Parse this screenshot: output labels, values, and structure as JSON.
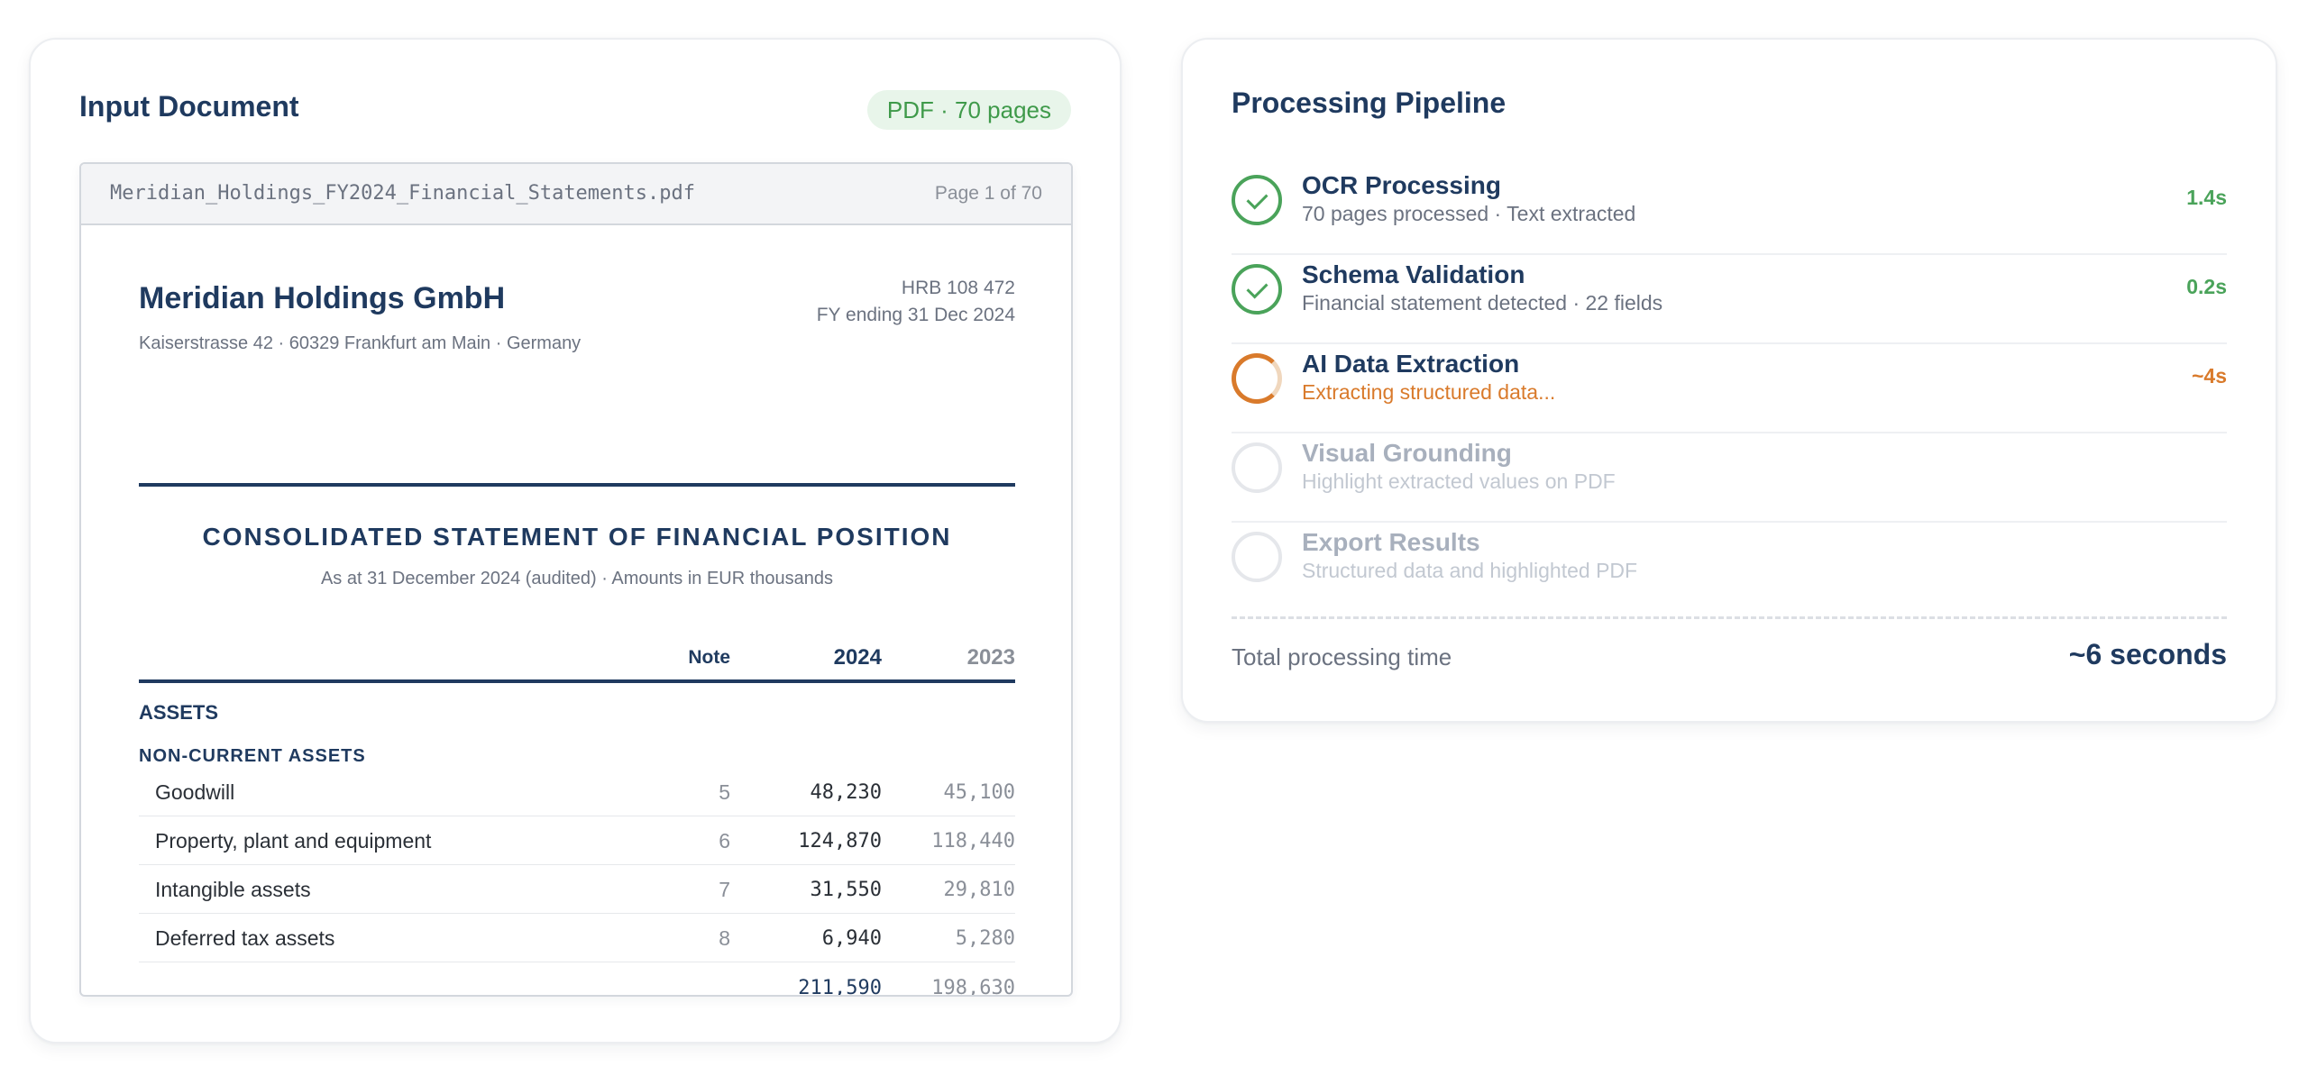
{
  "input_document": {
    "title": "Input Document",
    "badge": "PDF · 70 pages",
    "filename": "Meridian_Holdings_FY2024_Financial_Statements.pdf",
    "page_indicator": "Page 1 of 70",
    "company": "Meridian Holdings GmbH",
    "address": "Kaiserstrasse 42 · 60329 Frankfurt am Main · Germany",
    "registry": "HRB 108 472",
    "fiscal_year": "FY ending 31 Dec 2024",
    "statement_title": "CONSOLIDATED STATEMENT OF FINANCIAL POSITION",
    "statement_subtitle": "As at 31 December 2024 (audited) · Amounts in EUR thousands",
    "columns": {
      "note": "Note",
      "current": "2024",
      "prior": "2023"
    },
    "section": "ASSETS",
    "subsection": "NON-CURRENT ASSETS",
    "rows": [
      {
        "label": "Goodwill",
        "note": "5",
        "current": "48,230",
        "prior": "45,100"
      },
      {
        "label": "Property, plant and equipment",
        "note": "6",
        "current": "124,870",
        "prior": "118,440"
      },
      {
        "label": "Intangible assets",
        "note": "7",
        "current": "31,550",
        "prior": "29,810"
      },
      {
        "label": "Deferred tax assets",
        "note": "8",
        "current": "6,940",
        "prior": "5,280"
      }
    ],
    "total": {
      "current": "211,590",
      "prior": "198,630"
    }
  },
  "pipeline": {
    "title": "Processing Pipeline",
    "steps": [
      {
        "name": "OCR Processing",
        "description": "70 pages processed · Text extracted",
        "time": "1.4s",
        "status": "done"
      },
      {
        "name": "Schema Validation",
        "description": "Financial statement detected · 22 fields",
        "time": "0.2s",
        "status": "done"
      },
      {
        "name": "AI Data Extraction",
        "description": "Extracting structured data...",
        "time": "~4s",
        "status": "active"
      },
      {
        "name": "Visual Grounding",
        "description": "Highlight extracted values on PDF",
        "time": "",
        "status": "pending"
      },
      {
        "name": "Export Results",
        "description": "Structured data and highlighted PDF",
        "time": "",
        "status": "pending"
      }
    ],
    "total_label": "Total processing time",
    "total_value": "~6 seconds"
  },
  "colors": {
    "primary": "#1f3a5f",
    "success": "#4aa35a",
    "in_progress": "#d97a2b",
    "pending": "#a8b0bd"
  }
}
